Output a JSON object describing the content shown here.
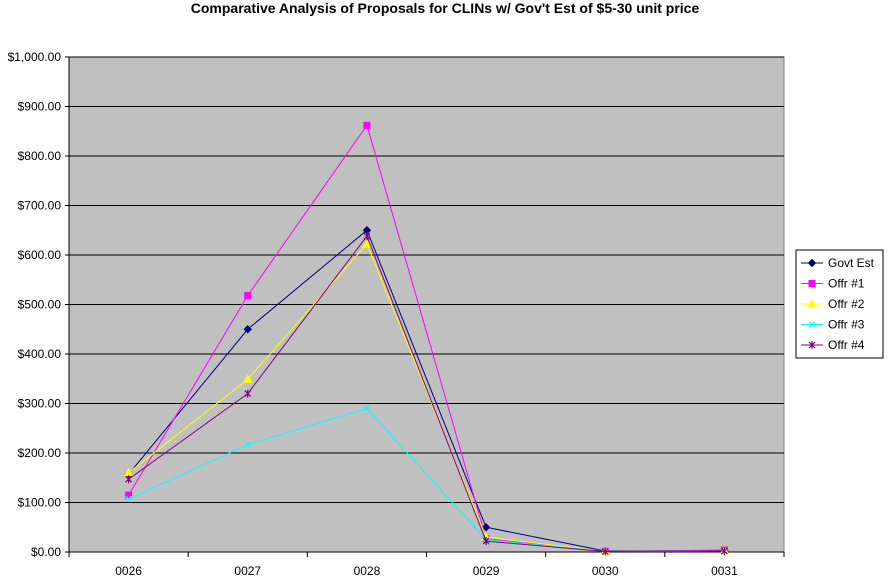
{
  "chart_data": {
    "type": "line",
    "title": "Comparative Analysis of Proposals for CLINs w/ Gov't Est of $5-30 unit price",
    "xlabel": "",
    "ylabel": "",
    "categories": [
      "0026",
      "0027",
      "0028",
      "0029",
      "0030",
      "0031"
    ],
    "ylim": [
      0,
      1000
    ],
    "yticks": [
      "$0.00",
      "$100.00",
      "$200.00",
      "$300.00",
      "$400.00",
      "$500.00",
      "$600.00",
      "$700.00",
      "$800.00",
      "$900.00",
      "$1,000.00"
    ],
    "grid": true,
    "legend": "right",
    "series": [
      {
        "name": "Govt Est",
        "color": "#000080",
        "marker": "diamond",
        "values": [
          157,
          450,
          650,
          50,
          2,
          3
        ]
      },
      {
        "name": "Offr #1",
        "color": "#ff00ff",
        "marker": "square",
        "values": [
          115,
          518,
          862,
          27,
          1,
          4
        ]
      },
      {
        "name": "Offr #2",
        "color": "#ffff00",
        "marker": "triangle",
        "values": [
          160,
          349,
          622,
          30,
          1,
          2
        ]
      },
      {
        "name": "Offr #3",
        "color": "#00ffff",
        "marker": "x",
        "values": [
          107,
          217,
          290,
          25,
          1,
          2
        ]
      },
      {
        "name": "Offr #4",
        "color": "#800080",
        "marker": "asterisk",
        "values": [
          147,
          320,
          638,
          22,
          1,
          2
        ]
      }
    ]
  }
}
